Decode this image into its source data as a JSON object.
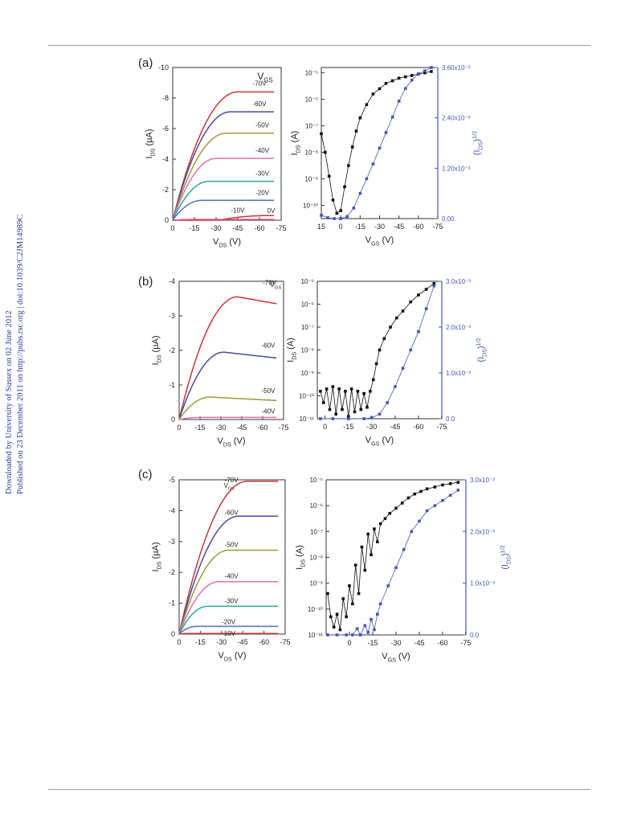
{
  "side_note": {
    "line1": "Downloaded by University of Sussex on 02 June 2012",
    "line2": "Published on 23 December 2011 on http://pubs.rsc.org | doi:10.1039/C2JM14989C"
  },
  "panels": [
    {
      "label": "(a)"
    },
    {
      "label": "(b)"
    },
    {
      "label": "(c)"
    }
  ],
  "chart_data": [
    {
      "panel": "(a)",
      "type": "line",
      "title": "",
      "xlabel": "V_DS (V)",
      "ylabel": "I_DS (µA)",
      "legend_title": "V_GS",
      "xlim": [
        0,
        -75
      ],
      "ylim": [
        0,
        -10
      ],
      "xticks": [
        0,
        -15,
        -30,
        -45,
        -60,
        -75
      ],
      "yticks": [
        0,
        -2,
        -4,
        -6,
        -8,
        -10
      ],
      "xtick_labels": [
        "0",
        "-15",
        "-30",
        "-45",
        "-60",
        "-75"
      ],
      "ytick_labels": [
        "0",
        "-2",
        "-4",
        "-6",
        "-8",
        "-10"
      ],
      "series": [
        {
          "name": "-70V",
          "color": "#c8353a",
          "sat": -8.4,
          "vsat": -45
        },
        {
          "name": "-60V",
          "color": "#4a4a9a",
          "sat": -7.1,
          "vsat": -40
        },
        {
          "name": "-50V",
          "color": "#9a9a3a",
          "sat": -5.7,
          "vsat": -37
        },
        {
          "name": "-40V",
          "color": "#e070b0",
          "sat": -4.05,
          "vsat": -30
        },
        {
          "name": "-30V",
          "color": "#2aa79a",
          "sat": -2.55,
          "vsat": -25
        },
        {
          "name": "-20V",
          "color": "#5070c0",
          "sat": -1.3,
          "vsat": -20
        },
        {
          "name": "-10V",
          "color": "#c8353a",
          "sat": -0.3,
          "vsat": -65,
          "onset": -32
        },
        {
          "name": "0V",
          "color": "#d85070",
          "sat": -0.05,
          "vsat": -15
        }
      ]
    },
    {
      "panel": "(a)",
      "type": "scatter",
      "title": "",
      "xlabel": "V_GS (V)",
      "ylabel": "I_DS (A)",
      "y2label": "(I_DS)^1/2",
      "xlim": [
        15,
        -75
      ],
      "ylim_log": [
        -10.5,
        -4.8
      ],
      "y2lim": [
        0,
        0.0036
      ],
      "xticks": [
        15,
        0,
        -15,
        -30,
        -45,
        -60,
        -75
      ],
      "xtick_labels": [
        "15",
        "0",
        "-15",
        "-30",
        "-45",
        "-60",
        "-75"
      ],
      "ytick_labels": [
        "10⁻¹⁰",
        "10⁻⁹",
        "10⁻⁸",
        "10⁻⁷",
        "10⁻⁶",
        "10⁻⁵"
      ],
      "y2tick_labels": [
        "0.00",
        "1.20x10⁻³",
        "2.40x10⁻³",
        "3.60x10⁻³"
      ],
      "series": [
        {
          "name": "I_DS",
          "color": "#111111",
          "points": [
            [
              15,
              -7.3
            ],
            [
              12,
              -8.0
            ],
            [
              9,
              -8.9
            ],
            [
              6,
              -9.8
            ],
            [
              3,
              -10.3
            ],
            [
              0,
              -10.2
            ],
            [
              -3,
              -9.3
            ],
            [
              -6,
              -8.5
            ],
            [
              -9,
              -7.8
            ],
            [
              -12,
              -7.2
            ],
            [
              -15,
              -6.7
            ],
            [
              -20,
              -6.2
            ],
            [
              -25,
              -5.8
            ],
            [
              -30,
              -5.6
            ],
            [
              -35,
              -5.4
            ],
            [
              -40,
              -5.3
            ],
            [
              -45,
              -5.2
            ],
            [
              -50,
              -5.15
            ],
            [
              -55,
              -5.1
            ],
            [
              -60,
              -5.05
            ],
            [
              -65,
              -5.0
            ],
            [
              -70,
              -4.95
            ]
          ]
        },
        {
          "name": "(I_DS)^1/2",
          "color": "#4257b2",
          "points": [
            [
              15,
              8e-05
            ],
            [
              10,
              2e-05
            ],
            [
              5,
              0.0
            ],
            [
              0,
              0.0
            ],
            [
              -5,
              5e-05
            ],
            [
              -10,
              0.00025
            ],
            [
              -15,
              0.0006
            ],
            [
              -20,
              0.00095
            ],
            [
              -25,
              0.0013
            ],
            [
              -30,
              0.00168
            ],
            [
              -35,
              0.00205
            ],
            [
              -40,
              0.00242
            ],
            [
              -45,
              0.0028
            ],
            [
              -50,
              0.0031
            ],
            [
              -55,
              0.0033
            ],
            [
              -60,
              0.00345
            ],
            [
              -65,
              0.00352
            ],
            [
              -70,
              0.0036
            ]
          ]
        }
      ]
    },
    {
      "panel": "(b)",
      "type": "line",
      "title": "",
      "xlabel": "V_DS (V)",
      "ylabel": "I_DS (µA)",
      "legend_title": "V_GS",
      "xlim": [
        0,
        -75
      ],
      "ylim": [
        0,
        -4
      ],
      "xticks": [
        0,
        -15,
        -30,
        -45,
        -60,
        -75
      ],
      "yticks": [
        0,
        -1,
        -2,
        -3,
        -4
      ],
      "xtick_labels": [
        "0",
        "-15",
        "-30",
        "-45",
        "-60",
        "-75"
      ],
      "ytick_labels": [
        "0",
        "-1",
        "-2",
        "-3",
        "-4"
      ],
      "series": [
        {
          "name": "-70V",
          "color": "#c8353a",
          "sat": -3.55,
          "vsat": -42,
          "droop": -3.35
        },
        {
          "name": "-60V",
          "color": "#4a4a9a",
          "sat": -1.95,
          "vsat": -32,
          "droop": -1.78
        },
        {
          "name": "-50V",
          "color": "#9a9a3a",
          "sat": -0.65,
          "vsat": -22,
          "droop": -0.55
        },
        {
          "name": "-40V",
          "color": "#e070b0",
          "sat": -0.06,
          "vsat": -15,
          "droop": -0.06
        }
      ]
    },
    {
      "panel": "(b)",
      "type": "scatter",
      "title": "",
      "xlabel": "V_GS (V)",
      "ylabel": "I_DS (A)",
      "y2label": "(I_DS)^1/2",
      "xlim": [
        5,
        -75
      ],
      "ylim_log": [
        -11,
        -5
      ],
      "y2lim": [
        0,
        0.003
      ],
      "xticks": [
        0,
        -15,
        -30,
        -45,
        -60,
        -75
      ],
      "xtick_labels": [
        "0",
        "-15",
        "-30",
        "-45",
        "-60",
        "-75"
      ],
      "ytick_labels": [
        "10⁻¹¹",
        "10⁻¹⁰",
        "10⁻⁹",
        "10⁻⁸",
        "10⁻⁷",
        "10⁻⁶",
        "10⁻⁵"
      ],
      "y2tick_labels": [
        "0.0",
        "1.0x10⁻³",
        "2.0x10⁻³",
        "3.0x10⁻³"
      ],
      "series": [
        {
          "name": "I_DS",
          "color": "#111111",
          "points": [
            [
              3,
              -9.8
            ],
            [
              1,
              -10.3
            ],
            [
              -1,
              -9.7
            ],
            [
              -3,
              -10.6
            ],
            [
              -5,
              -9.6
            ],
            [
              -7,
              -10.8
            ],
            [
              -9,
              -9.7
            ],
            [
              -11,
              -10.6
            ],
            [
              -13,
              -9.8
            ],
            [
              -15,
              -10.9
            ],
            [
              -17,
              -9.7
            ],
            [
              -19,
              -10.7
            ],
            [
              -21,
              -9.8
            ],
            [
              -23,
              -10.6
            ],
            [
              -25,
              -9.9
            ],
            [
              -27,
              -10.5
            ],
            [
              -29,
              -9.8
            ],
            [
              -31,
              -9.3
            ],
            [
              -33,
              -8.6
            ],
            [
              -35,
              -8.0
            ],
            [
              -38,
              -7.5
            ],
            [
              -42,
              -7.0
            ],
            [
              -46,
              -6.6
            ],
            [
              -50,
              -6.3
            ],
            [
              -55,
              -5.9
            ],
            [
              -60,
              -5.6
            ],
            [
              -65,
              -5.35
            ],
            [
              -70,
              -5.1
            ]
          ]
        },
        {
          "name": "(I_DS)^1/2",
          "color": "#4257b2",
          "points": [
            [
              3,
              0.0
            ],
            [
              -5,
              0.0
            ],
            [
              -15,
              0.0
            ],
            [
              -25,
              0.0
            ],
            [
              -30,
              2e-05
            ],
            [
              -35,
              0.0001
            ],
            [
              -40,
              0.00035
            ],
            [
              -45,
              0.0007
            ],
            [
              -50,
              0.0011
            ],
            [
              -55,
              0.0015
            ],
            [
              -60,
              0.0019
            ],
            [
              -65,
              0.0024
            ],
            [
              -70,
              0.0029
            ]
          ]
        }
      ]
    },
    {
      "panel": "(c)",
      "type": "line",
      "title": "",
      "xlabel": "V_DS (V)",
      "ylabel": "I_DS (µA)",
      "legend_title": "V_GS",
      "xlim": [
        0,
        -75
      ],
      "ylim": [
        0,
        -5
      ],
      "xticks": [
        0,
        -15,
        -30,
        -45,
        -60,
        -75
      ],
      "yticks": [
        0,
        -1,
        -2,
        -3,
        -4,
        -5
      ],
      "xtick_labels": [
        "0",
        "-15",
        "-30",
        "-45",
        "-60",
        "-75"
      ],
      "ytick_labels": [
        "0",
        "-1",
        "-2",
        "-3",
        "-4",
        "-5"
      ],
      "series": [
        {
          "name": "-70V",
          "color": "#c8353a",
          "sat": -4.95,
          "vsat": -48
        },
        {
          "name": "-60V",
          "color": "#4a4a9a",
          "sat": -3.82,
          "vsat": -42
        },
        {
          "name": "-50V",
          "color": "#9a9a3a",
          "sat": -2.72,
          "vsat": -35
        },
        {
          "name": "-40V",
          "color": "#e070b0",
          "sat": -1.7,
          "vsat": -28
        },
        {
          "name": "-30V",
          "color": "#2aa79a",
          "sat": -0.9,
          "vsat": -20
        },
        {
          "name": "-20V",
          "color": "#5070c0",
          "sat": -0.25,
          "vsat": -12
        },
        {
          "name": "-10V",
          "color": "#c8353a",
          "sat": -0.02,
          "vsat": -8
        }
      ]
    },
    {
      "panel": "(c)",
      "type": "scatter",
      "title": "",
      "xlabel": "V_GS (V)",
      "ylabel": "I_DS (A)",
      "y2label": "(I_DS)^1/2",
      "xlim": [
        15,
        -75
      ],
      "ylim_log": [
        -11,
        -5
      ],
      "y2lim": [
        0,
        0.003
      ],
      "xticks": [
        0,
        -15,
        -30,
        -45,
        -60,
        -75
      ],
      "xtick_labels": [
        "0",
        "-15",
        "-30",
        "-45",
        "-60",
        "-75"
      ],
      "ytick_labels": [
        "10⁻¹¹",
        "10⁻¹⁰",
        "10⁻⁹",
        "10⁻⁸",
        "10⁻⁷",
        "10⁻⁶",
        "10⁻⁵"
      ],
      "y2tick_labels": [
        "0.0",
        "1.0x10⁻³",
        "2.0x10⁻³",
        "3.0x10⁻³"
      ],
      "series": [
        {
          "name": "I_DS",
          "color": "#111111",
          "points": [
            [
              14,
              -9.4
            ],
            [
              12,
              -10.3
            ],
            [
              10,
              -10.7
            ],
            [
              8,
              -10.2
            ],
            [
              6,
              -10.8
            ],
            [
              4,
              -9.6
            ],
            [
              2,
              -10.3
            ],
            [
              0,
              -9.1
            ],
            [
              -2,
              -9.8
            ],
            [
              -4,
              -8.3
            ],
            [
              -6,
              -9.4
            ],
            [
              -8,
              -7.6
            ],
            [
              -10,
              -8.5
            ],
            [
              -12,
              -7.1
            ],
            [
              -14,
              -7.9
            ],
            [
              -16,
              -6.9
            ],
            [
              -18,
              -7.4
            ],
            [
              -20,
              -6.7
            ],
            [
              -23,
              -6.5
            ],
            [
              -26,
              -6.3
            ],
            [
              -30,
              -6.1
            ],
            [
              -34,
              -5.9
            ],
            [
              -38,
              -5.7
            ],
            [
              -42,
              -5.55
            ],
            [
              -46,
              -5.45
            ],
            [
              -50,
              -5.35
            ],
            [
              -55,
              -5.28
            ],
            [
              -60,
              -5.2
            ],
            [
              -65,
              -5.15
            ],
            [
              -70,
              -5.1
            ]
          ]
        },
        {
          "name": "(I_DS)^1/2",
          "color": "#4257b2",
          "points": [
            [
              14,
              0.0
            ],
            [
              8,
              0.0
            ],
            [
              2,
              0.0
            ],
            [
              -2,
              0.0
            ],
            [
              -5,
              0.00012
            ],
            [
              -7,
              0.0
            ],
            [
              -10,
              0.00018
            ],
            [
              -12,
              5e-05
            ],
            [
              -14,
              0.0003
            ],
            [
              -16,
              0.0001
            ],
            [
              -18,
              0.0004
            ],
            [
              -20,
              0.0006
            ],
            [
              -25,
              0.00095
            ],
            [
              -30,
              0.0013
            ],
            [
              -35,
              0.00165
            ],
            [
              -40,
              0.002
            ],
            [
              -45,
              0.0022
            ],
            [
              -50,
              0.0024
            ],
            [
              -55,
              0.0025
            ],
            [
              -60,
              0.0026
            ],
            [
              -65,
              0.0027
            ],
            [
              -70,
              0.0028
            ]
          ]
        }
      ]
    }
  ]
}
